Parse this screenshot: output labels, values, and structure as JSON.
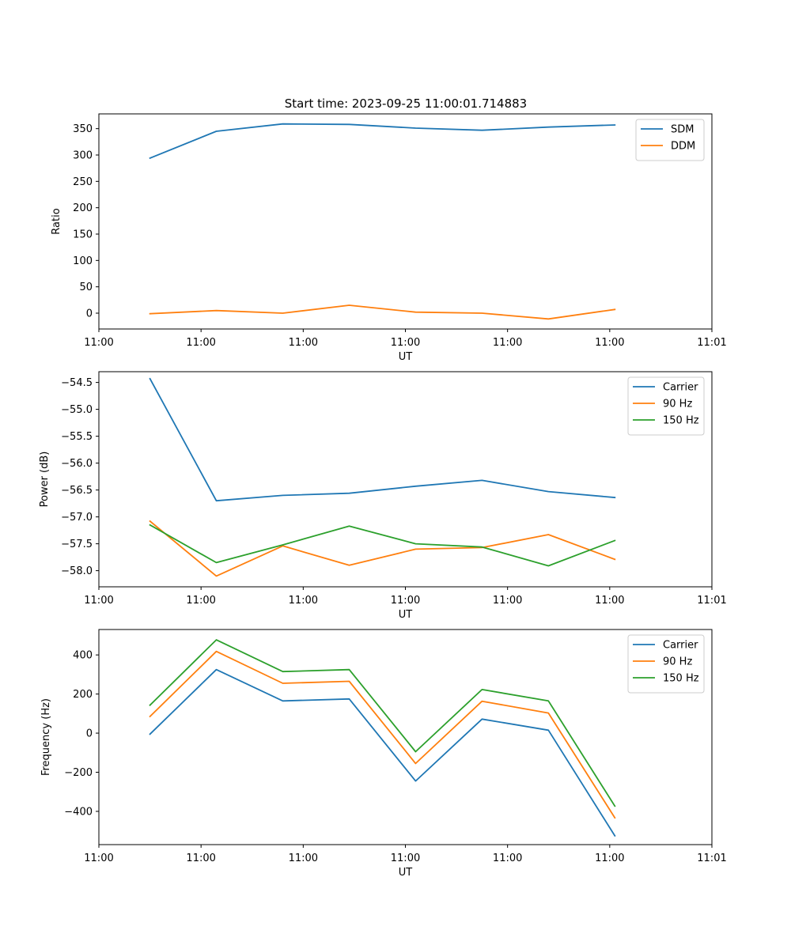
{
  "figure_title": "Start time: 2023-09-25 11:00:01.714883",
  "colors": {
    "blue": "#1f77b4",
    "orange": "#ff7f0e",
    "green": "#2ca02c"
  },
  "chart_data": [
    {
      "type": "line",
      "title": "Start time: 2023-09-25 11:00:01.714883",
      "xlabel": "UT",
      "ylabel": "Ratio",
      "xlim": [
        0,
        12
      ],
      "ylim": [
        -30,
        378
      ],
      "x_ticks": [
        {
          "value": 0,
          "label": "11:00"
        },
        {
          "value": 2,
          "label": "11:00"
        },
        {
          "value": 4,
          "label": "11:00"
        },
        {
          "value": 6,
          "label": "11:00"
        },
        {
          "value": 8,
          "label": "11:00"
        },
        {
          "value": 10,
          "label": "11:00"
        },
        {
          "value": 12,
          "label": "11:01"
        }
      ],
      "y_ticks": [
        {
          "value": 0,
          "label": "0"
        },
        {
          "value": 50,
          "label": "50"
        },
        {
          "value": 100,
          "label": "100"
        },
        {
          "value": 150,
          "label": "150"
        },
        {
          "value": 200,
          "label": "200"
        },
        {
          "value": 250,
          "label": "250"
        },
        {
          "value": 300,
          "label": "300"
        },
        {
          "value": 350,
          "label": "350"
        }
      ],
      "legend_position": "upper right",
      "x": [
        1,
        2.3,
        3.6,
        4.9,
        6.2,
        7.5,
        8.8,
        10.1
      ],
      "series": [
        {
          "name": "SDM",
          "color": "#1f77b4",
          "values": [
            294,
            345,
            359,
            358,
            351,
            347,
            353,
            357
          ]
        },
        {
          "name": "DDM",
          "color": "#ff7f0e",
          "values": [
            -1,
            5,
            0,
            15,
            2,
            0,
            -11,
            7
          ]
        }
      ]
    },
    {
      "type": "line",
      "title": "",
      "xlabel": "UT",
      "ylabel": "Power (dB)",
      "xlim": [
        0,
        12
      ],
      "ylim": [
        -58.3,
        -54.3
      ],
      "x_ticks": [
        {
          "value": 0,
          "label": "11:00"
        },
        {
          "value": 2,
          "label": "11:00"
        },
        {
          "value": 4,
          "label": "11:00"
        },
        {
          "value": 6,
          "label": "11:00"
        },
        {
          "value": 8,
          "label": "11:00"
        },
        {
          "value": 10,
          "label": "11:00"
        },
        {
          "value": 12,
          "label": "11:01"
        }
      ],
      "y_ticks": [
        {
          "value": -54.5,
          "label": "−54.5"
        },
        {
          "value": -55.0,
          "label": "−55.0"
        },
        {
          "value": -55.5,
          "label": "−55.5"
        },
        {
          "value": -56.0,
          "label": "−56.0"
        },
        {
          "value": -56.5,
          "label": "−56.5"
        },
        {
          "value": -57.0,
          "label": "−57.0"
        },
        {
          "value": -57.5,
          "label": "−57.5"
        },
        {
          "value": -58.0,
          "label": "−58.0"
        }
      ],
      "legend_position": "upper right",
      "x": [
        1,
        2.3,
        3.6,
        4.9,
        6.2,
        7.5,
        8.8,
        10.1
      ],
      "series": [
        {
          "name": "Carrier",
          "color": "#1f77b4",
          "values": [
            -54.43,
            -56.7,
            -56.6,
            -56.56,
            -56.43,
            -56.32,
            -56.53,
            -56.64
          ]
        },
        {
          "name": "90 Hz",
          "color": "#ff7f0e",
          "values": [
            -57.08,
            -58.1,
            -57.54,
            -57.9,
            -57.6,
            -57.57,
            -57.33,
            -57.79
          ]
        },
        {
          "name": "150 Hz",
          "color": "#2ca02c",
          "values": [
            -57.15,
            -57.85,
            -57.52,
            -57.17,
            -57.5,
            -57.56,
            -57.91,
            -57.44
          ]
        }
      ]
    },
    {
      "type": "line",
      "title": "",
      "xlabel": "UT",
      "ylabel": "Frequency (Hz)",
      "xlim": [
        0,
        12
      ],
      "ylim": [
        -570,
        530
      ],
      "x_ticks": [
        {
          "value": 0,
          "label": "11:00"
        },
        {
          "value": 2,
          "label": "11:00"
        },
        {
          "value": 4,
          "label": "11:00"
        },
        {
          "value": 6,
          "label": "11:00"
        },
        {
          "value": 8,
          "label": "11:00"
        },
        {
          "value": 10,
          "label": "11:00"
        },
        {
          "value": 12,
          "label": "11:01"
        }
      ],
      "y_ticks": [
        {
          "value": -400,
          "label": "−400"
        },
        {
          "value": -200,
          "label": "−200"
        },
        {
          "value": 0,
          "label": "0"
        },
        {
          "value": 200,
          "label": "200"
        },
        {
          "value": 400,
          "label": "400"
        }
      ],
      "legend_position": "upper right",
      "x": [
        1,
        2.3,
        3.6,
        4.9,
        6.2,
        7.5,
        8.8,
        10.1
      ],
      "series": [
        {
          "name": "Carrier",
          "color": "#1f77b4",
          "values": [
            -5,
            325,
            165,
            175,
            -245,
            72,
            15,
            -525
          ]
        },
        {
          "name": "90 Hz",
          "color": "#ff7f0e",
          "values": [
            85,
            418,
            255,
            265,
            -155,
            163,
            103,
            -433
          ]
        },
        {
          "name": "150 Hz",
          "color": "#2ca02c",
          "values": [
            143,
            477,
            315,
            325,
            -95,
            223,
            165,
            -373
          ]
        }
      ]
    }
  ]
}
